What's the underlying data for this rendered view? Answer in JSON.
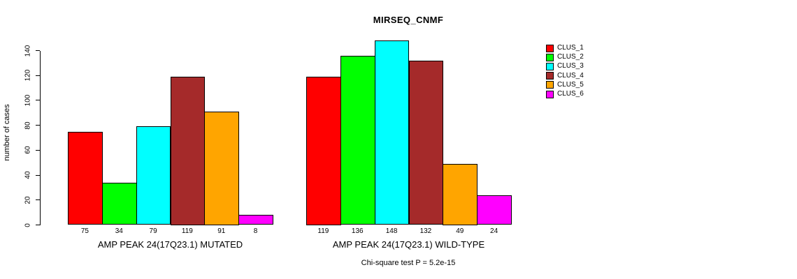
{
  "chart_data": {
    "type": "bar",
    "title": "MIRSEQ_CNMF",
    "ylabel": "number of cases",
    "xlabel": "",
    "yticks": [
      0,
      20,
      40,
      60,
      80,
      100,
      120,
      140
    ],
    "ylim": [
      0,
      148
    ],
    "grid": false,
    "legend_position": "right",
    "legend": [
      "CLUS_1",
      "CLUS_2",
      "CLUS_3",
      "CLUS_4",
      "CLUS_5",
      "CLUS_6"
    ],
    "series_colors": [
      "#FF0000",
      "#00FF00",
      "#00FFFF",
      "#A52A2A",
      "#FFA500",
      "#FF00FF"
    ],
    "groups": [
      {
        "label": "AMP PEAK 24(17Q23.1) MUTATED",
        "values": [
          75,
          34,
          79,
          119,
          91,
          8
        ]
      },
      {
        "label": "AMP PEAK 24(17Q23.1) WILD-TYPE",
        "values": [
          119,
          136,
          148,
          132,
          49,
          24
        ]
      }
    ],
    "annotation": "Chi-square test P = 5.2e-15",
    "colors": {
      "bar_border": "#000000",
      "axis": "#000000",
      "text": "#000000",
      "background": "#FFFFFF"
    }
  }
}
